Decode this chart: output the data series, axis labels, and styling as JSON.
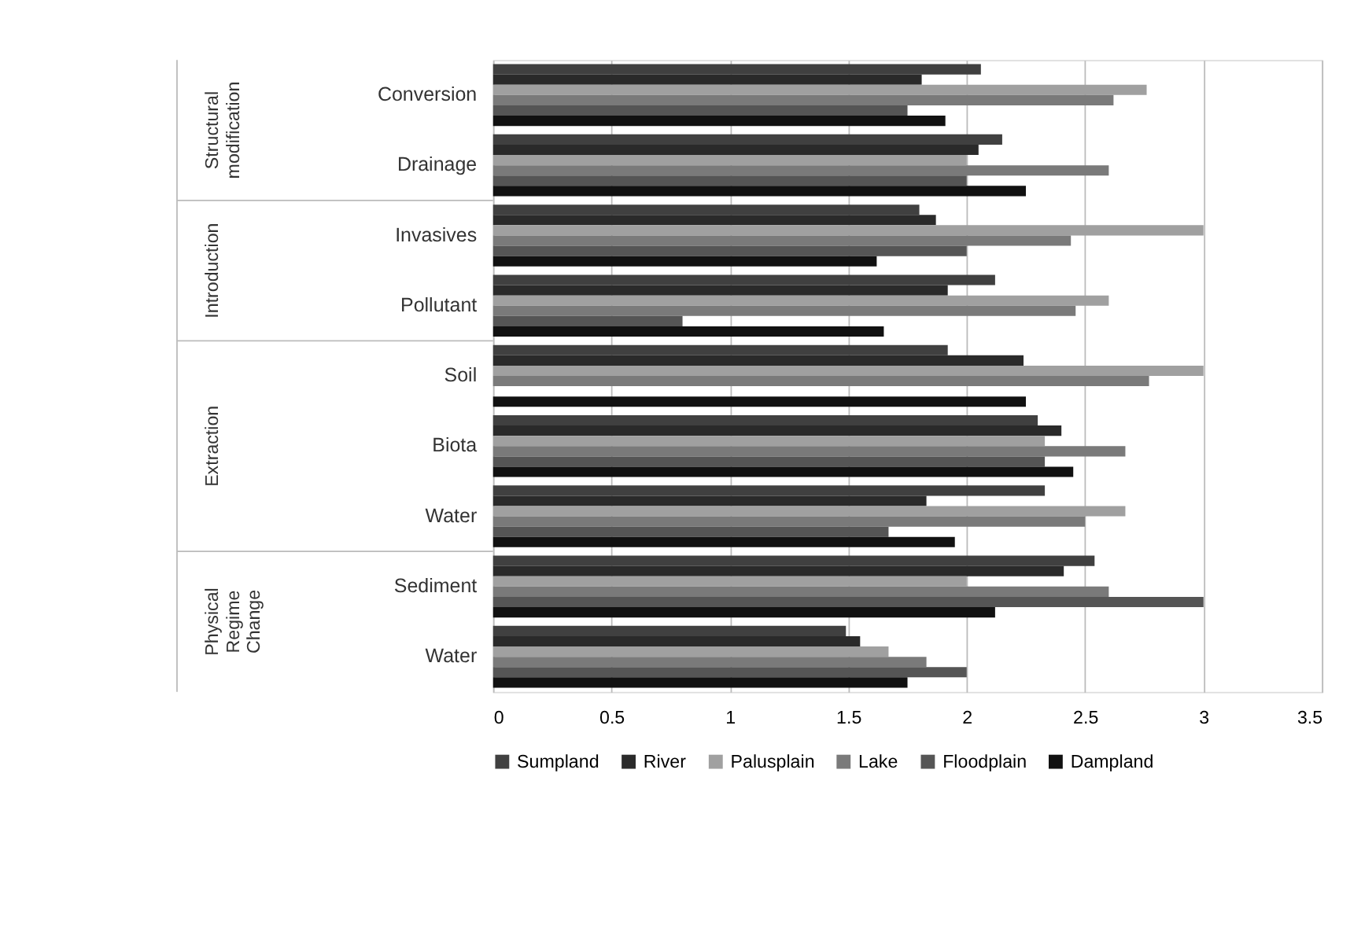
{
  "chart_data": {
    "type": "bar",
    "orientation": "horizontal",
    "categories": [
      "Conversion",
      "Drainage",
      "Invasives",
      "Pollutant",
      "Soil",
      "Biota",
      "Water",
      "Sediment",
      "Water"
    ],
    "series": [
      {
        "name": "Sumpland",
        "color": "#404040",
        "values": [
          2.06,
          2.15,
          1.8,
          2.12,
          1.92,
          2.3,
          2.33,
          2.54,
          1.49
        ]
      },
      {
        "name": "River",
        "color": "#2a2a2a",
        "values": [
          1.81,
          2.05,
          1.87,
          1.92,
          2.24,
          2.4,
          1.83,
          2.41,
          1.55
        ]
      },
      {
        "name": "Palusplain",
        "color": "#a0a0a0",
        "values": [
          2.76,
          2.0,
          3.0,
          2.6,
          3.0,
          2.33,
          2.67,
          2.0,
          1.67
        ]
      },
      {
        "name": "Lake",
        "color": "#7a7a7a",
        "values": [
          2.62,
          2.6,
          2.44,
          2.46,
          2.77,
          2.67,
          2.5,
          2.6,
          1.83
        ]
      },
      {
        "name": "Floodplain",
        "color": "#555555",
        "values": [
          1.75,
          2.0,
          2.0,
          0.8,
          0,
          2.33,
          1.67,
          3.0,
          2.0
        ]
      },
      {
        "name": "Dampland",
        "color": "#111111",
        "values": [
          1.91,
          2.25,
          1.62,
          1.65,
          2.25,
          2.45,
          1.95,
          2.12,
          1.75
        ]
      }
    ],
    "xlim": [
      0,
      3.5
    ],
    "xticks": [
      0,
      0.5,
      1,
      1.5,
      2,
      2.5,
      3,
      3.5
    ],
    "grid": "x",
    "legend": "bottom",
    "annotations": [
      "Structural modification",
      "Introduction",
      "Extraction",
      "Physical Regime Change"
    ]
  }
}
